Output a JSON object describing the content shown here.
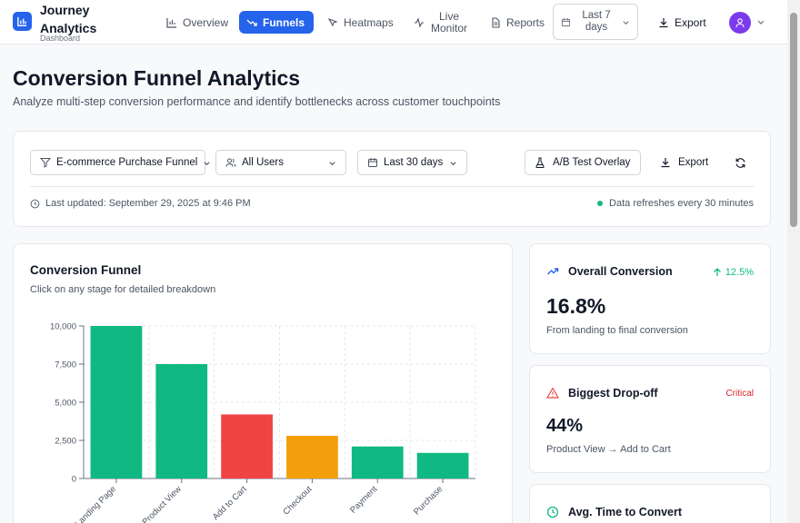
{
  "brand": {
    "name": "Journey Analytics",
    "sub": "Dashboard"
  },
  "nav": {
    "items": [
      {
        "label": "Overview",
        "icon": "bar-chart-icon",
        "active": false
      },
      {
        "label": "Funnels",
        "icon": "trend-down-icon",
        "active": true
      },
      {
        "label": "Heatmaps",
        "icon": "cursor-icon",
        "active": false
      },
      {
        "label": "Live Monitor",
        "icon": "activity-icon",
        "active": false
      },
      {
        "label": "Reports",
        "icon": "document-icon",
        "active": false
      }
    ],
    "date_range": "Last 7 days",
    "export_label": "Export"
  },
  "page": {
    "title": "Conversion Funnel Analytics",
    "subtitle": "Analyze multi-step conversion performance and identify bottlenecks across customer touchpoints"
  },
  "filters": {
    "funnel": "E-commerce Purchase Funnel",
    "segment": "All Users",
    "period": "Last 30 days",
    "ab_label": "A/B Test Overlay",
    "export_label": "Export",
    "last_updated": "Last updated: September 29, 2025 at 9:46 PM",
    "refresh_note": "Data refreshes every 30 minutes"
  },
  "chart": {
    "title": "Conversion Funnel",
    "subtitle": "Click on any stage for detailed breakdown"
  },
  "chart_data": {
    "type": "bar",
    "categories": [
      "Landing Page",
      "Product View",
      "Add to Cart",
      "Checkout",
      "Payment",
      "Purchase"
    ],
    "values": [
      10000,
      7500,
      4200,
      2800,
      2100,
      1680
    ],
    "colors": [
      "#10b981",
      "#10b981",
      "#ef4444",
      "#f59e0b",
      "#10b981",
      "#10b981"
    ],
    "yticks": [
      "0",
      "2,500",
      "5,000",
      "7,500",
      "10,000"
    ],
    "ylim": [
      0,
      10000
    ],
    "grid": true,
    "legend": "none"
  },
  "metrics": [
    {
      "title": "Overall Conversion",
      "icon": "trend-up-icon",
      "badge": "12.5%",
      "value": "16.8%",
      "desc": "From landing to final conversion"
    },
    {
      "title": "Biggest Drop-off",
      "icon": "warning-icon",
      "badge": "Critical",
      "value": "44%",
      "desc": "Product View → Add to Cart"
    },
    {
      "title": "Avg. Time to Convert",
      "icon": "clock-icon"
    }
  ],
  "colors": {
    "accent": "#2563eb",
    "success": "#10b981",
    "danger": "#ef4444",
    "warning": "#f59e0b",
    "avatar": "#7c3aed"
  }
}
